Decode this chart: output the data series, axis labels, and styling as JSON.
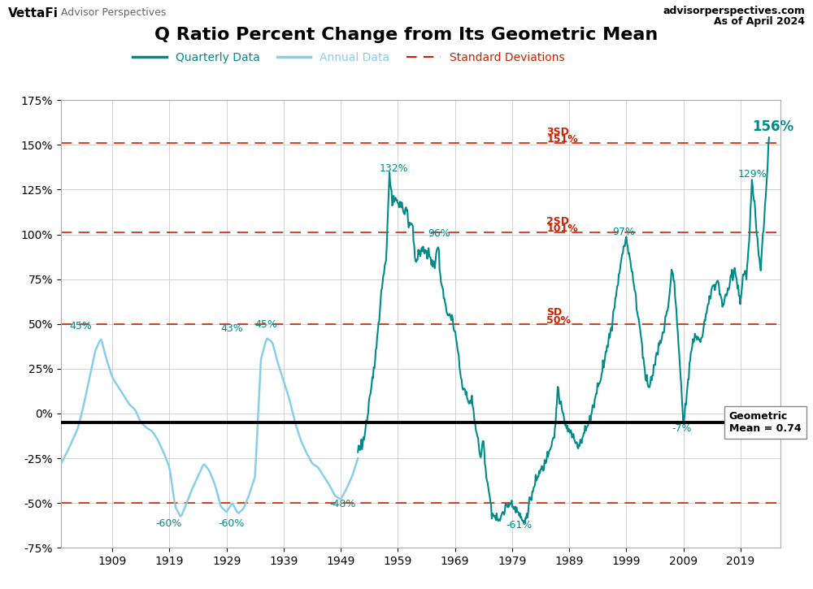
{
  "title": "Q Ratio Percent Change from Its Geometric Mean",
  "ylabel": "",
  "ylim": [
    -75,
    175
  ],
  "yticks": [
    -75,
    -50,
    -25,
    0,
    25,
    50,
    75,
    100,
    125,
    150,
    175
  ],
  "xlim": [
    1900,
    2026
  ],
  "xticks": [
    1909,
    1919,
    1929,
    1939,
    1949,
    1959,
    1969,
    1979,
    1989,
    1999,
    2009,
    2019
  ],
  "sd_levels": [
    -50,
    50,
    101,
    151
  ],
  "geo_mean_y": -5,
  "colors": {
    "quarterly": "#008B8B",
    "annual": "#87CEEB",
    "sd_line": "#CC2200",
    "geo_mean": "#000000",
    "background": "#FFFFFF",
    "grid": "#CCCCCC"
  },
  "annual_waypoints": [
    [
      1900,
      -28
    ],
    [
      1901,
      -22
    ],
    [
      1902,
      -15
    ],
    [
      1903,
      -8
    ],
    [
      1904,
      5
    ],
    [
      1905,
      20
    ],
    [
      1906,
      35
    ],
    [
      1907,
      42
    ],
    [
      1908,
      30
    ],
    [
      1909,
      20
    ],
    [
      1910,
      15
    ],
    [
      1911,
      10
    ],
    [
      1912,
      5
    ],
    [
      1913,
      2
    ],
    [
      1914,
      -5
    ],
    [
      1915,
      -8
    ],
    [
      1916,
      -10
    ],
    [
      1917,
      -15
    ],
    [
      1918,
      -22
    ],
    [
      1919,
      -30
    ],
    [
      1920,
      -52
    ],
    [
      1921,
      -58
    ],
    [
      1922,
      -50
    ],
    [
      1923,
      -42
    ],
    [
      1924,
      -35
    ],
    [
      1925,
      -28
    ],
    [
      1926,
      -32
    ],
    [
      1927,
      -40
    ],
    [
      1928,
      -52
    ],
    [
      1929,
      -55
    ],
    [
      1930,
      -50
    ],
    [
      1931,
      -56
    ],
    [
      1932,
      -53
    ],
    [
      1933,
      -45
    ],
    [
      1934,
      -35
    ],
    [
      1935,
      30
    ],
    [
      1936,
      42
    ],
    [
      1937,
      40
    ],
    [
      1938,
      28
    ],
    [
      1939,
      18
    ],
    [
      1940,
      8
    ],
    [
      1941,
      -5
    ],
    [
      1942,
      -15
    ],
    [
      1943,
      -22
    ],
    [
      1944,
      -28
    ],
    [
      1945,
      -30
    ],
    [
      1946,
      -35
    ],
    [
      1947,
      -40
    ],
    [
      1948,
      -46
    ],
    [
      1949,
      -48
    ],
    [
      1950,
      -42
    ],
    [
      1951,
      -35
    ],
    [
      1952,
      -25
    ]
  ],
  "quarterly_waypoints": [
    [
      1952,
      -20
    ],
    [
      1953,
      -15
    ],
    [
      1954,
      5
    ],
    [
      1955,
      30
    ],
    [
      1956,
      65
    ],
    [
      1957,
      90
    ],
    [
      1957.5,
      132
    ],
    [
      1958,
      118
    ],
    [
      1958.5,
      120
    ],
    [
      1959,
      115
    ],
    [
      1959.5,
      118
    ],
    [
      1960,
      112
    ],
    [
      1960.5,
      115
    ],
    [
      1961,
      105
    ],
    [
      1961.5,
      108
    ],
    [
      1962,
      85
    ],
    [
      1962.5,
      88
    ],
    [
      1963,
      90
    ],
    [
      1963.5,
      92
    ],
    [
      1964,
      90
    ],
    [
      1964.5,
      88
    ],
    [
      1965,
      85
    ],
    [
      1965.5,
      82
    ],
    [
      1966,
      96
    ],
    [
      1966.5,
      75
    ],
    [
      1967,
      65
    ],
    [
      1967.5,
      58
    ],
    [
      1968,
      55
    ],
    [
      1968.5,
      52
    ],
    [
      1969,
      45
    ],
    [
      1969.5,
      35
    ],
    [
      1970,
      20
    ],
    [
      1970.5,
      15
    ],
    [
      1971,
      10
    ],
    [
      1971.5,
      5
    ],
    [
      1972,
      8
    ],
    [
      1972.5,
      -5
    ],
    [
      1973,
      -15
    ],
    [
      1973.5,
      -25
    ],
    [
      1974,
      -15
    ],
    [
      1974.5,
      -35
    ],
    [
      1975,
      -45
    ],
    [
      1975.5,
      -55
    ],
    [
      1976,
      -58
    ],
    [
      1976.5,
      -60
    ],
    [
      1977,
      -58
    ],
    [
      1977.5,
      -55
    ],
    [
      1978,
      -52
    ],
    [
      1978.5,
      -50
    ],
    [
      1979,
      -50
    ],
    [
      1979.5,
      -52
    ],
    [
      1980,
      -55
    ],
    [
      1980.5,
      -58
    ],
    [
      1981,
      -61
    ],
    [
      1981.5,
      -58
    ],
    [
      1982,
      -50
    ],
    [
      1982.5,
      -45
    ],
    [
      1983,
      -40
    ],
    [
      1983.5,
      -35
    ],
    [
      1984,
      -32
    ],
    [
      1984.5,
      -30
    ],
    [
      1985,
      -25
    ],
    [
      1985.5,
      -20
    ],
    [
      1986,
      -15
    ],
    [
      1986.5,
      -10
    ],
    [
      1987,
      15
    ],
    [
      1987.5,
      5
    ],
    [
      1988,
      -2
    ],
    [
      1988.5,
      -8
    ],
    [
      1989,
      -10
    ],
    [
      1989.5,
      -12
    ],
    [
      1990,
      -15
    ],
    [
      1990.5,
      -18
    ],
    [
      1991,
      -15
    ],
    [
      1991.5,
      -12
    ],
    [
      1992,
      -8
    ],
    [
      1992.5,
      -5
    ],
    [
      1993,
      2
    ],
    [
      1993.5,
      8
    ],
    [
      1994,
      15
    ],
    [
      1994.5,
      20
    ],
    [
      1995,
      28
    ],
    [
      1995.5,
      35
    ],
    [
      1996,
      42
    ],
    [
      1996.5,
      50
    ],
    [
      1997,
      62
    ],
    [
      1997.5,
      72
    ],
    [
      1998,
      85
    ],
    [
      1998.5,
      92
    ],
    [
      1999,
      97
    ],
    [
      1999.5,
      90
    ],
    [
      2000,
      78
    ],
    [
      2000.5,
      70
    ],
    [
      2001,
      55
    ],
    [
      2001.5,
      45
    ],
    [
      2002,
      30
    ],
    [
      2002.5,
      20
    ],
    [
      2003,
      15
    ],
    [
      2003.5,
      20
    ],
    [
      2004,
      28
    ],
    [
      2004.5,
      35
    ],
    [
      2005,
      40
    ],
    [
      2005.5,
      45
    ],
    [
      2006,
      55
    ],
    [
      2006.5,
      65
    ],
    [
      2007,
      80
    ],
    [
      2007.5,
      70
    ],
    [
      2008,
      45
    ],
    [
      2008.5,
      20
    ],
    [
      2009,
      -7
    ],
    [
      2009.5,
      10
    ],
    [
      2010,
      25
    ],
    [
      2010.5,
      35
    ],
    [
      2011,
      45
    ],
    [
      2011.5,
      42
    ],
    [
      2012,
      40
    ],
    [
      2012.5,
      45
    ],
    [
      2013,
      58
    ],
    [
      2013.5,
      62
    ],
    [
      2014,
      70
    ],
    [
      2014.5,
      72
    ],
    [
      2015,
      75
    ],
    [
      2015.5,
      65
    ],
    [
      2016,
      60
    ],
    [
      2016.5,
      65
    ],
    [
      2017,
      72
    ],
    [
      2017.5,
      78
    ],
    [
      2018,
      80
    ],
    [
      2018.5,
      72
    ],
    [
      2019,
      60
    ],
    [
      2019.5,
      80
    ],
    [
      2020,
      75
    ],
    [
      2020.5,
      95
    ],
    [
      2021,
      129
    ],
    [
      2021.5,
      115
    ],
    [
      2022,
      95
    ],
    [
      2022.5,
      80
    ],
    [
      2023,
      100
    ],
    [
      2023.5,
      125
    ],
    [
      2024.0,
      156
    ]
  ]
}
